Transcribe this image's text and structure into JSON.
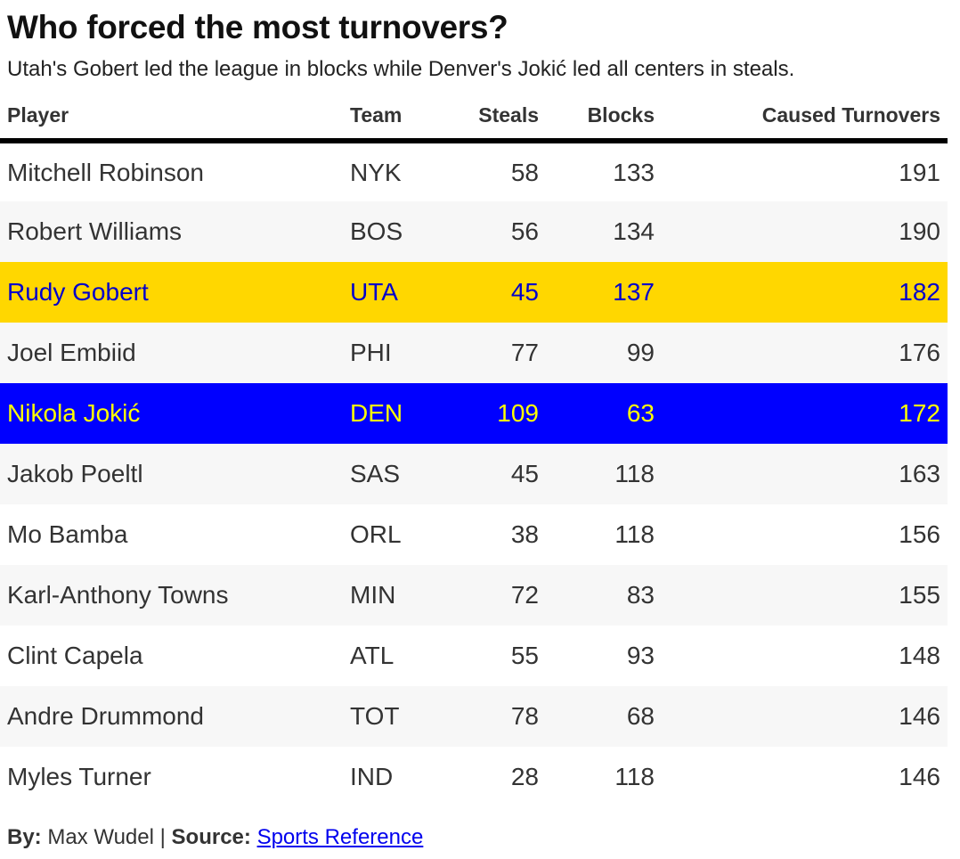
{
  "title": "Who forced the most turnovers?",
  "subtitle": "Utah's Gobert led the league in blocks while Denver's Jokić led all centers in steals.",
  "colors": {
    "header_rule": "#000000",
    "stripe": "#f7f7f7",
    "gold_highlight_bg": "#FFD700",
    "gold_highlight_text": "#0000CC",
    "blue_highlight_bg": "#0000FF",
    "blue_highlight_text": "#FFFF00",
    "link": "#0000EE"
  },
  "chart_data": {
    "type": "table",
    "columns": [
      "Player",
      "Team",
      "Steals",
      "Blocks",
      "Caused Turnovers"
    ],
    "rows": [
      {
        "player": "Mitchell Robinson",
        "team": "NYK",
        "steals": "58",
        "blocks": "133",
        "caused": "191",
        "highlight": ""
      },
      {
        "player": "Robert Williams",
        "team": "BOS",
        "steals": "56",
        "blocks": "134",
        "caused": "190",
        "highlight": ""
      },
      {
        "player": "Rudy Gobert",
        "team": "UTA",
        "steals": "45",
        "blocks": "137",
        "caused": "182",
        "highlight": "gold"
      },
      {
        "player": "Joel Embiid",
        "team": "PHI",
        "steals": "77",
        "blocks": "99",
        "caused": "176",
        "highlight": ""
      },
      {
        "player": "Nikola Jokić",
        "team": "DEN",
        "steals": "109",
        "blocks": "63",
        "caused": "172",
        "highlight": "blue"
      },
      {
        "player": "Jakob Poeltl",
        "team": "SAS",
        "steals": "45",
        "blocks": "118",
        "caused": "163",
        "highlight": ""
      },
      {
        "player": "Mo Bamba",
        "team": "ORL",
        "steals": "38",
        "blocks": "118",
        "caused": "156",
        "highlight": ""
      },
      {
        "player": "Karl-Anthony Towns",
        "team": "MIN",
        "steals": "72",
        "blocks": "83",
        "caused": "155",
        "highlight": ""
      },
      {
        "player": "Clint Capela",
        "team": "ATL",
        "steals": "55",
        "blocks": "93",
        "caused": "148",
        "highlight": ""
      },
      {
        "player": "Andre Drummond",
        "team": "TOT",
        "steals": "78",
        "blocks": "68",
        "caused": "146",
        "highlight": ""
      },
      {
        "player": "Myles Turner",
        "team": "IND",
        "steals": "28",
        "blocks": "118",
        "caused": "146",
        "highlight": ""
      }
    ]
  },
  "footer": {
    "by_label": "By:",
    "author": "Max Wudel",
    "separator": "|",
    "source_label": "Source:",
    "source_link": "Sports Reference"
  }
}
